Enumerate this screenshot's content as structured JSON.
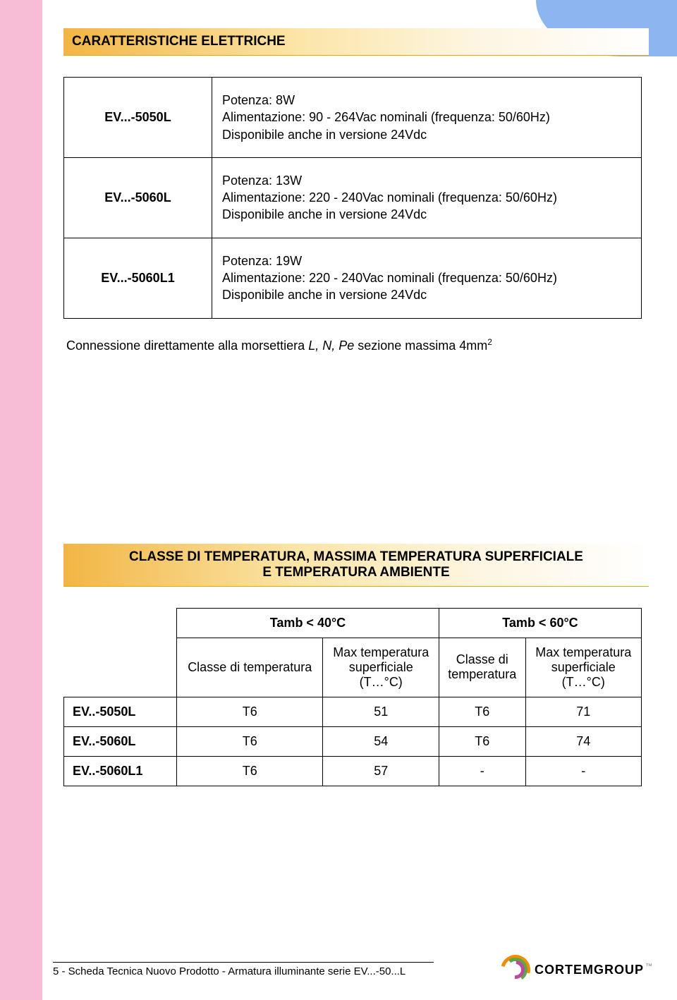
{
  "page": {
    "pink_stripe_color": "#f7bdd6",
    "blue_corner_color": "#8db6f0",
    "background_color": "#ffffff"
  },
  "header1": {
    "text": "CARATTERISTICHE ELETTRICHE",
    "gradient_from": "#f2b544",
    "gradient_to": "#ffffff",
    "fontsize": 19
  },
  "spec_rows": [
    {
      "model": "EV...-5050L",
      "line1": "Potenza: 8W",
      "line2": "Alimentazione: 90 - 264Vac nominali (frequenza: 50/60Hz)",
      "line3": "Disponibile anche in versione 24Vdc"
    },
    {
      "model": "EV...-5060L",
      "line1": "Potenza: 13W",
      "line2": "Alimentazione: 220 - 240Vac nominali (frequenza: 50/60Hz)",
      "line3": "Disponibile anche in versione 24Vdc"
    },
    {
      "model": "EV...-5060L1",
      "line1": "Potenza: 19W",
      "line2": "Alimentazione: 220 - 240Vac nominali (frequenza: 50/60Hz)",
      "line3": "Disponibile anche in versione 24Vdc"
    }
  ],
  "note": {
    "prefix": "Connessione direttamente alla morsettiera ",
    "italic": "L, N, Pe",
    "suffix": "   sezione massima 4mm",
    "sup": "2"
  },
  "header2": {
    "line1": "CLASSE DI TEMPERATURA, MASSIMA TEMPERATURA SUPERFICIALE",
    "line2": "E TEMPERATURA AMBIENTE"
  },
  "temp_table": {
    "group1": "Tamb < 40°C",
    "group2": "Tamb < 60°C",
    "col_class": "Classe di\ntemperatura",
    "col_max": "Max temperatura\nsuperficiale\n(T…°C)",
    "rows": [
      {
        "label": "EV..-5050L",
        "c1": "T6",
        "v1": "51",
        "c2": "T6",
        "v2": "71"
      },
      {
        "label": "EV..-5060L",
        "c1": "T6",
        "v1": "54",
        "c2": "T6",
        "v2": "74"
      },
      {
        "label": "EV..-5060L1",
        "c1": "T6",
        "v1": "57",
        "c2": "-",
        "v2": "-"
      }
    ]
  },
  "footer": {
    "text": "5 - Scheda Tecnica Nuovo Prodotto - Armatura illuminante serie EV...-50...L",
    "logo_bold": "CORTEM",
    "logo_grey": "GROUP",
    "logo_colors": {
      "outer": "#f28c00",
      "mid": "#5aa946",
      "inner": "#b94a9c"
    }
  }
}
